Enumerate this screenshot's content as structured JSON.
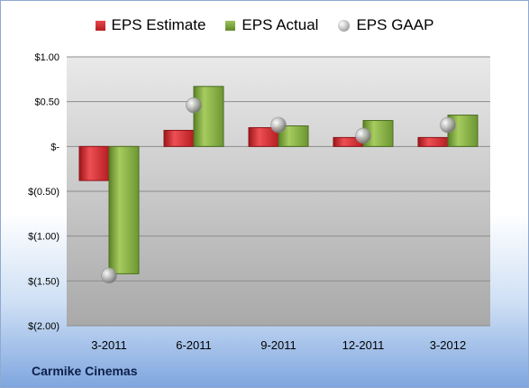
{
  "chart_data": {
    "type": "bar",
    "categories": [
      "3-2011",
      "6-2011",
      "9-2011",
      "12-2011",
      "3-2012"
    ],
    "series": [
      {
        "name": "EPS Estimate",
        "values": [
          -0.38,
          0.18,
          0.21,
          0.1,
          0.1
        ],
        "color": "#d0262b"
      },
      {
        "name": "EPS Actual",
        "values": [
          -1.42,
          0.67,
          0.23,
          0.29,
          0.35
        ],
        "color": "#82ad43"
      },
      {
        "name": "EPS GAAP",
        "values": [
          -1.44,
          0.46,
          0.24,
          0.12,
          0.24
        ],
        "color": "#b0b0b0",
        "marker": "sphere"
      }
    ],
    "yticks": [
      "$1.00",
      "$0.50",
      "$-",
      "$(0.50)",
      "$(1.00)",
      "$(1.50)",
      "$(2.00)"
    ],
    "ylim": [
      -2,
      1
    ],
    "grid": true,
    "legend": "top"
  },
  "footer": {
    "company": "Carmike Cinemas"
  }
}
